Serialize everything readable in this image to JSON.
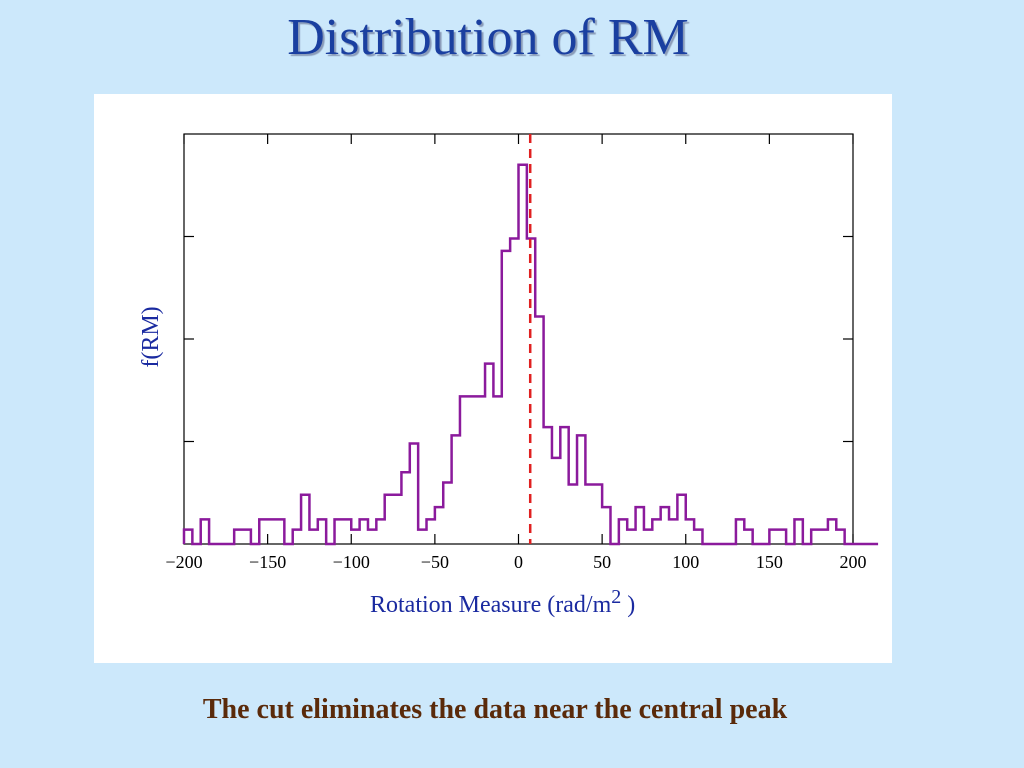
{
  "slide": {
    "title": "Distribution of RM",
    "caption": "The cut eliminates the data near the central peak"
  },
  "chart_data": {
    "type": "histogram",
    "xlabel": "Rotation Measure (rad/m",
    "xlabel_superscript": "2",
    "xlabel_close": " )",
    "ylabel": "f(RM)",
    "xlim": [
      -200,
      200
    ],
    "ylim": [
      0,
      20
    ],
    "xticks": [
      -200,
      -150,
      -100,
      -50,
      0,
      50,
      100,
      150,
      200
    ],
    "xtick_labels": [
      "−200",
      "−150",
      "−100",
      "−50",
      "0",
      "50",
      "100",
      "150",
      "200"
    ],
    "yticks": [
      5,
      10,
      15
    ],
    "show_ytick_labels": false,
    "bin_width": 5,
    "bin_edges_start": -200,
    "counts": [
      0.7,
      0,
      1.2,
      0,
      0,
      0,
      0.7,
      0.7,
      0,
      1.2,
      1.2,
      1.2,
      0,
      0.7,
      2.4,
      0.7,
      1.2,
      0,
      1.2,
      1.2,
      0.7,
      1.2,
      0.7,
      1.2,
      2.4,
      2.4,
      3.5,
      4.9,
      0.7,
      1.2,
      1.8,
      3.0,
      5.3,
      7.2,
      7.2,
      7.2,
      8.8,
      7.2,
      14.3,
      14.9,
      18.5,
      14.9,
      11.1,
      5.7,
      4.2,
      5.7,
      2.9,
      5.3,
      2.9,
      2.9,
      1.8,
      0,
      1.2,
      0.7,
      1.8,
      0.7,
      1.2,
      1.8,
      1.2,
      2.4,
      1.2,
      0.7,
      0,
      0,
      0,
      0,
      1.2,
      0.7,
      0,
      0,
      0.7,
      0.7,
      0,
      1.2,
      0,
      0.7,
      0.7,
      1.2,
      0.7,
      0,
      0,
      0,
      0
    ],
    "histogram_color": "#8b1a9c",
    "cut_line": {
      "x": 7,
      "color": "#e02020",
      "style": "dashed"
    },
    "axis_color": "#000000",
    "grid": false
  }
}
